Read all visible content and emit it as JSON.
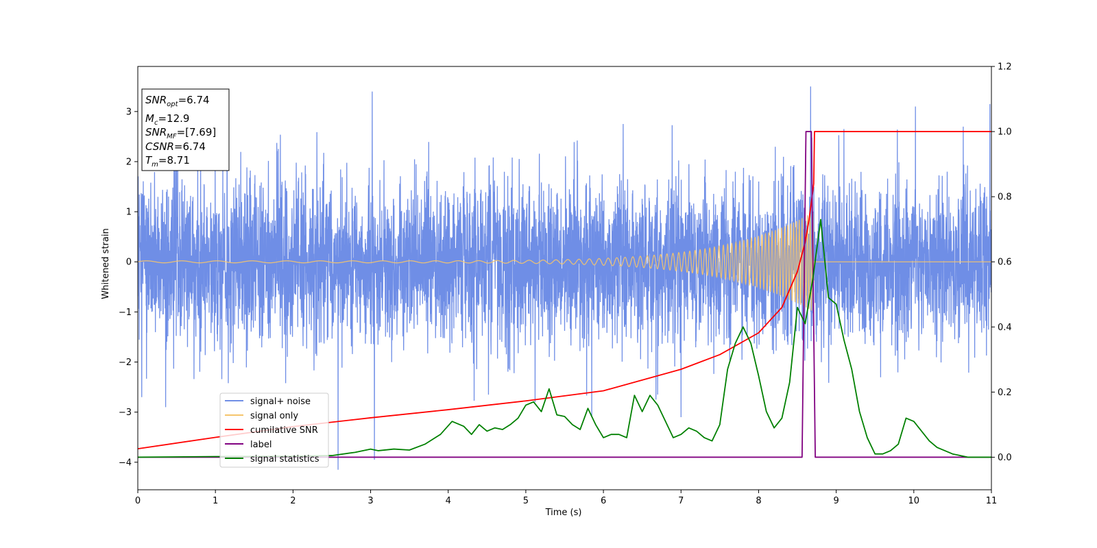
{
  "chart_data": {
    "type": "line",
    "xlabel": "Time (s)",
    "ylabel": "Whitened strain",
    "xlim": [
      0,
      11
    ],
    "ylim_left": [
      -4.55,
      3.9
    ],
    "ylim_right": [
      -0.1,
      1.2
    ],
    "xticks": [
      "0",
      "1",
      "2",
      "3",
      "4",
      "5",
      "6",
      "7",
      "8",
      "9",
      "10",
      "11"
    ],
    "yticks_left": [
      "−4",
      "−3",
      "−2",
      "−1",
      "0",
      "1",
      "2",
      "3"
    ],
    "yticks_right": [
      "0.0",
      "0.2",
      "0.4",
      "0.6",
      "0.8",
      "1.0",
      "1.2"
    ],
    "grid": false,
    "legend_position": "lower-left",
    "annotation": {
      "snr_opt": {
        "main": "SNR",
        "sub": "opt",
        "value": "=6.74"
      },
      "mc": {
        "main": "M",
        "sub": "c",
        "value": "=12.9"
      },
      "snr_mf": {
        "main": "SNR",
        "sub": "MF",
        "value": "=[7.69]"
      },
      "csnr": {
        "main": "CSNR",
        "value": "=6.74"
      },
      "tm": {
        "main": "T",
        "sub": "m",
        "value": "=8.71"
      }
    },
    "series": [
      {
        "name": "signal+ noise",
        "axis": "left",
        "color": "#6f8ee6",
        "description_stats": {
          "std": 0.8,
          "min": -4.15,
          "max": 3.55
        },
        "peaks": [
          [
            0.05,
            -2.7
          ],
          [
            1.15,
            2.9
          ],
          [
            2.58,
            -4.15
          ],
          [
            3.02,
            3.4
          ],
          [
            3.05,
            -3.95
          ],
          [
            5.12,
            -2.8
          ],
          [
            5.85,
            -3.1
          ],
          [
            6.7,
            -2.65
          ],
          [
            7.0,
            -3.1
          ],
          [
            8.67,
            3.5
          ],
          [
            9.1,
            2.65
          ],
          [
            10.02,
            3.1
          ],
          [
            10.98,
            3.15
          ]
        ]
      },
      {
        "name": "signal only",
        "axis": "left",
        "color": "#f5c46b",
        "chirp": {
          "t_merge": 8.71,
          "start_amp": 0.02,
          "peak_amp": 1.0,
          "start_freq": 2.2,
          "end_freq": 30
        }
      },
      {
        "name": "cumilative SNR",
        "axis": "right",
        "color": "#ff0000",
        "x": [
          0,
          1,
          2,
          3,
          4,
          5,
          6,
          7,
          7.5,
          8,
          8.3,
          8.5,
          8.6,
          8.65,
          8.7,
          8.71,
          8.72,
          9,
          10,
          11
        ],
        "y": [
          0.026,
          0.061,
          0.094,
          0.121,
          0.146,
          0.173,
          0.204,
          0.27,
          0.315,
          0.382,
          0.46,
          0.57,
          0.66,
          0.73,
          0.82,
          0.84,
          1.0,
          1.0,
          1.0,
          1.0
        ]
      },
      {
        "name": "label",
        "axis": "right",
        "color": "#800080",
        "x": [
          0,
          8.56,
          8.61,
          8.68,
          8.73,
          11
        ],
        "y": [
          0,
          0,
          1.0,
          1.0,
          0,
          0
        ]
      },
      {
        "name": "signal statistics",
        "axis": "right",
        "color": "#008000",
        "x": [
          0,
          1,
          2,
          2.5,
          2.8,
          3.0,
          3.1,
          3.3,
          3.5,
          3.7,
          3.9,
          4.05,
          4.2,
          4.3,
          4.4,
          4.5,
          4.6,
          4.7,
          4.8,
          4.9,
          5.0,
          5.1,
          5.2,
          5.3,
          5.4,
          5.5,
          5.6,
          5.7,
          5.8,
          5.9,
          6.0,
          6.1,
          6.2,
          6.3,
          6.4,
          6.5,
          6.6,
          6.7,
          6.8,
          6.9,
          7.0,
          7.1,
          7.2,
          7.3,
          7.4,
          7.5,
          7.6,
          7.7,
          7.8,
          7.9,
          8.0,
          8.1,
          8.2,
          8.3,
          8.4,
          8.5,
          8.6,
          8.7,
          8.8,
          8.9,
          9.0,
          9.1,
          9.2,
          9.3,
          9.4,
          9.5,
          9.6,
          9.7,
          9.8,
          9.9,
          10.0,
          10.1,
          10.2,
          10.3,
          10.4,
          10.5,
          10.7,
          11
        ],
        "y": [
          0.0,
          0.002,
          0.003,
          0.005,
          0.015,
          0.025,
          0.02,
          0.025,
          0.022,
          0.04,
          0.07,
          0.11,
          0.095,
          0.07,
          0.1,
          0.08,
          0.09,
          0.085,
          0.1,
          0.12,
          0.16,
          0.17,
          0.14,
          0.21,
          0.13,
          0.125,
          0.1,
          0.085,
          0.15,
          0.1,
          0.06,
          0.07,
          0.07,
          0.06,
          0.19,
          0.14,
          0.19,
          0.16,
          0.11,
          0.06,
          0.07,
          0.09,
          0.08,
          0.06,
          0.05,
          0.1,
          0.27,
          0.35,
          0.4,
          0.35,
          0.25,
          0.14,
          0.09,
          0.12,
          0.23,
          0.46,
          0.41,
          0.55,
          0.73,
          0.49,
          0.47,
          0.36,
          0.27,
          0.14,
          0.06,
          0.01,
          0.01,
          0.02,
          0.04,
          0.12,
          0.11,
          0.08,
          0.05,
          0.03,
          0.02,
          0.01,
          0.0,
          0.0
        ]
      }
    ]
  }
}
